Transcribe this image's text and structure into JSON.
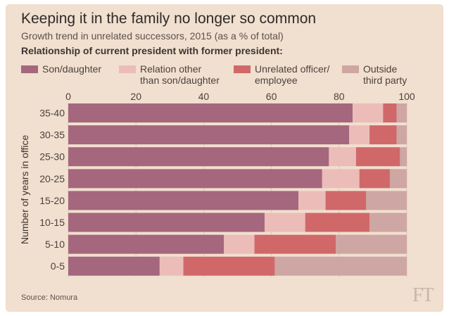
{
  "header": {
    "title": "Keeping it in the family no longer so common",
    "subtitle": "Growth trend in unrelated successors, 2015 (as a % of total)",
    "legend_title": "Relationship of current president with former president:"
  },
  "footer": {
    "source": "Source: Nomura",
    "brand": "FT"
  },
  "chart_data": {
    "type": "bar",
    "orientation": "horizontal",
    "stacked": true,
    "title": "Keeping it in the family no longer so common",
    "subtitle": "Growth trend in unrelated successors, 2015 (as a % of total)",
    "ylabel": "Number of years in office",
    "xlabel": "",
    "xlim": [
      0,
      100
    ],
    "xticks": [
      0,
      20,
      40,
      60,
      80,
      100
    ],
    "x_axis_position": "top",
    "grid": true,
    "legend_title": "Relationship of current president with former president:",
    "legend_position": "top",
    "categories": [
      "35-40",
      "30-35",
      "25-30",
      "20-25",
      "15-20",
      "10-15",
      "5-10",
      "0-5"
    ],
    "series": [
      {
        "name": "Son/daughter",
        "color": "#a5677d",
        "values": [
          84,
          83,
          77,
          75,
          68,
          58,
          46,
          27
        ]
      },
      {
        "name": "Relation other\nthan son/daughter",
        "color": "#ecbdb8",
        "values": [
          9,
          6,
          8,
          11,
          8,
          12,
          9,
          7
        ]
      },
      {
        "name": "Unrelated officer/\nemployee",
        "color": "#d0686a",
        "values": [
          4,
          8,
          13,
          9,
          12,
          19,
          24,
          27
        ]
      },
      {
        "name": "Outside\nthird party",
        "color": "#cea6a3",
        "values": [
          3,
          3,
          2,
          5,
          12,
          11,
          21,
          39
        ]
      }
    ]
  }
}
